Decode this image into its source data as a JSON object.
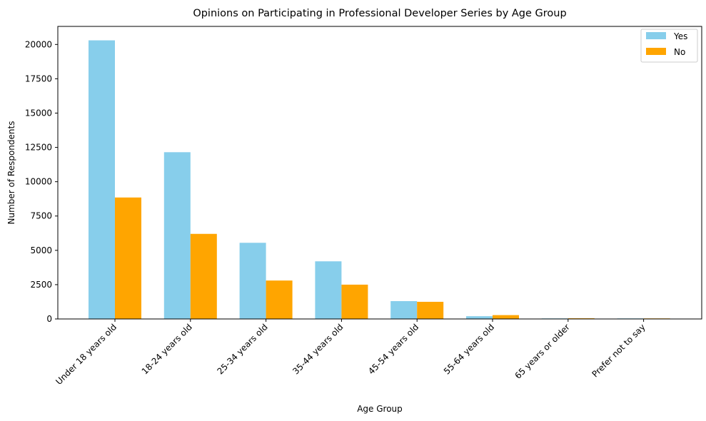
{
  "chart_data": {
    "type": "bar",
    "title": "Opinions on Participating in Professional Developer Series by Age Group",
    "xlabel": "Age Group",
    "ylabel": "Number of Respondents",
    "categories": [
      "Under 18 years old",
      "18-24 years old",
      "25-34 years old",
      "35-44 years old",
      "45-54 years old",
      "55-64 years old",
      "65 years or older",
      "Prefer not to say"
    ],
    "series": [
      {
        "name": "Yes",
        "color": "#87CEEB",
        "values": [
          20300,
          12150,
          5550,
          4200,
          1300,
          200,
          40,
          40
        ]
      },
      {
        "name": "No",
        "color": "#FFA500",
        "values": [
          8850,
          6200,
          2800,
          2500,
          1250,
          280,
          50,
          40
        ]
      }
    ],
    "ylim": [
      0,
      21316
    ],
    "yticks": [
      0,
      2500,
      5000,
      7500,
      10000,
      12500,
      15000,
      17500,
      20000
    ],
    "ytick_labels": [
      "0",
      "2500",
      "5000",
      "7500",
      "10000",
      "12500",
      "15000",
      "17500",
      "20000"
    ],
    "grid": false,
    "legend_position": "top-right"
  }
}
